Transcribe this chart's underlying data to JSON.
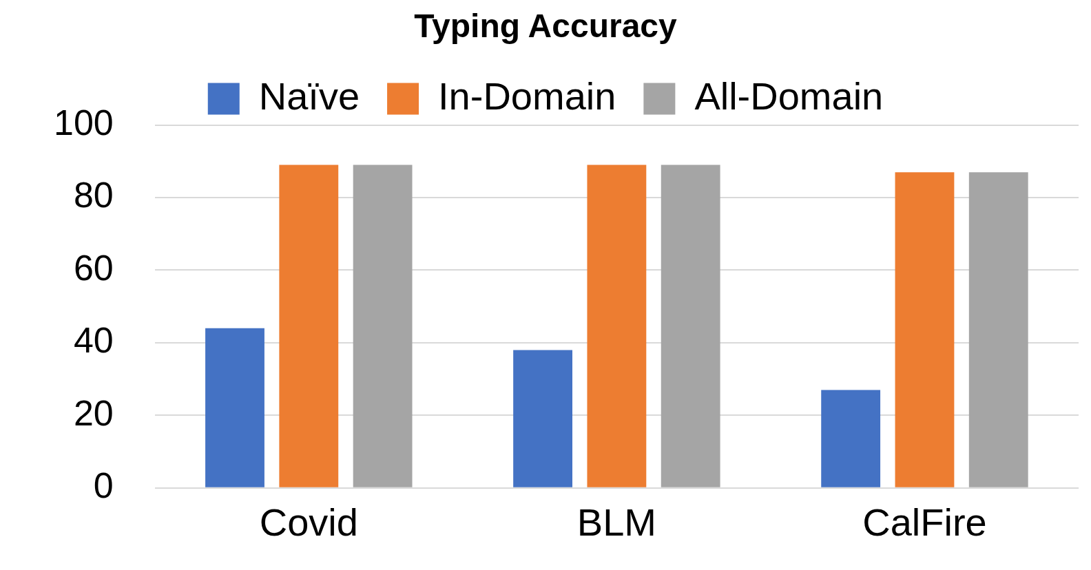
{
  "chart_data": {
    "type": "bar",
    "title": "Typing Accuracy",
    "categories": [
      "Covid",
      "BLM",
      "CalFire"
    ],
    "series": [
      {
        "name": "Naïve",
        "color": "#4472c4",
        "values": [
          44,
          38,
          27
        ]
      },
      {
        "name": "In-Domain",
        "color": "#ed7d31",
        "values": [
          89,
          89,
          87
        ]
      },
      {
        "name": "All-Domain",
        "color": "#a5a5a5",
        "values": [
          89,
          89,
          87
        ]
      }
    ],
    "ylim": [
      0,
      100
    ],
    "yticks": [
      0,
      20,
      40,
      60,
      80,
      100
    ],
    "grid": "y",
    "legend": "top"
  }
}
